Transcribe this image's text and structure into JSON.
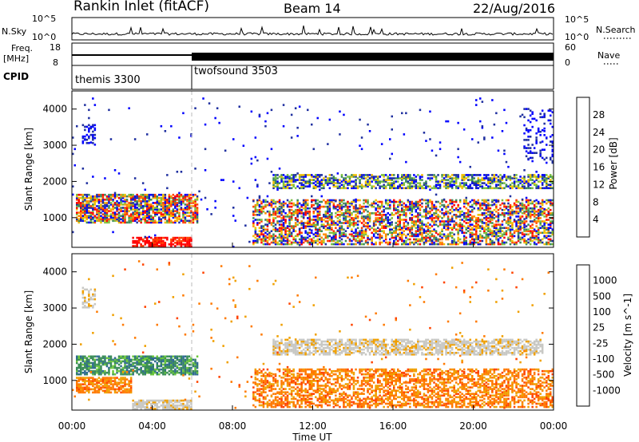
{
  "header": {
    "title": "Rankin Inlet (fitACF)",
    "beam": "Beam 14",
    "date": "22/Aug/2016"
  },
  "noise_panel": {
    "left_label": "N.Sky",
    "right_label": "N.Search",
    "left_ticks": [
      "10^5",
      "10^0"
    ],
    "right_ticks": [
      "10^5",
      "10^0"
    ]
  },
  "freq_panel": {
    "left_label": "Freq.",
    "left_unit": "[MHz]",
    "right_label": "Nave",
    "left_ticks": [
      "18",
      "8"
    ],
    "right_ticks": [
      "60",
      "0"
    ]
  },
  "cpid_panel": {
    "label": "CPID",
    "modes": [
      {
        "name": "themis 3300",
        "start_hour": 0
      },
      {
        "name": "twofsound 3503",
        "start_hour": 6
      }
    ]
  },
  "chart_data": [
    {
      "type": "heatmap",
      "title": "",
      "xlabel": "",
      "ylabel": "Slant Range [km]",
      "xlim": [
        0,
        24
      ],
      "ylim": [
        180,
        4500
      ],
      "yticks": [
        "4000",
        "3000",
        "2000",
        "1000"
      ],
      "colorbar": {
        "label": "Power [dB]",
        "ticks": [
          "28",
          "24",
          "20",
          "16",
          "12",
          "8",
          "4"
        ],
        "colors": [
          "#0000ff",
          "#2030a0",
          "#3d8a5a",
          "#7cc040",
          "#f0c000",
          "#ff8c00",
          "#ff4000",
          "#ff0000"
        ]
      },
      "regions": [
        {
          "t": [
            0.2,
            6.2
          ],
          "r": [
            900,
            1650
          ],
          "value": "mixed 8-28 dB"
        },
        {
          "t": [
            3.0,
            5.8
          ],
          "r": [
            200,
            450
          ],
          "value": "~28 dB"
        },
        {
          "t": [
            10,
            24
          ],
          "r": [
            300,
            2200
          ],
          "value": "mixed 4-28 dB"
        }
      ]
    },
    {
      "type": "heatmap",
      "title": "",
      "xlabel": "Time UT",
      "ylabel": "Slant Range [km]",
      "xlim": [
        0,
        24
      ],
      "ylim": [
        180,
        4500
      ],
      "xticks": [
        "00:00",
        "04:00",
        "08:00",
        "12:00",
        "16:00",
        "20:00",
        "00:00"
      ],
      "yticks": [
        "4000",
        "3000",
        "2000",
        "1000"
      ],
      "colorbar": {
        "label": "Velocity [m s^-1]",
        "ticks": [
          "1000",
          "500",
          "100",
          "25",
          "-25",
          "-100",
          "-500",
          "-1000"
        ],
        "colors": [
          "#1c3fa8",
          "#2f6b90",
          "#3a8c58",
          "#6cc83a",
          "#c8c8c4",
          "#f0a000",
          "#ff7a00",
          "#ff4400",
          "#ff0000"
        ]
      },
      "regions": [
        {
          "t": [
            0.2,
            6.2
          ],
          "r": [
            1150,
            1650
          ],
          "value": "positive (green)"
        },
        {
          "t": [
            0.2,
            3.0
          ],
          "r": [
            650,
            1100
          ],
          "value": "negative (orange)"
        },
        {
          "t": [
            10,
            23
          ],
          "r": [
            1700,
            2150
          ],
          "value": "near zero (grey)"
        },
        {
          "t": [
            9,
            24
          ],
          "r": [
            200,
            1300
          ],
          "value": "negative (orange)"
        }
      ]
    }
  ]
}
